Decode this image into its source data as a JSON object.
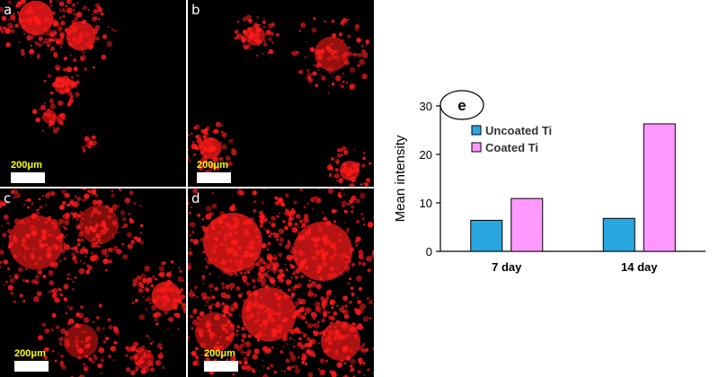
{
  "panels": [
    {
      "letter": "a",
      "scale_label": "200μm"
    },
    {
      "letter": "b",
      "scale_label": "200μm"
    },
    {
      "letter": "c",
      "scale_label": "200μm"
    },
    {
      "letter": "d",
      "scale_label": "200μm"
    }
  ],
  "colors": {
    "fluorescence": "#ff1a1a",
    "uncoated": "#2aa7e0",
    "coated": "#ff99ff"
  },
  "chart_data": {
    "type": "bar",
    "panel_label": "e",
    "categories": [
      "7 day",
      "14 day"
    ],
    "series": [
      {
        "name": "Uncoated Ti",
        "values": [
          6.4,
          6.8
        ]
      },
      {
        "name": "Coated Ti",
        "values": [
          10.9,
          26.3
        ]
      }
    ],
    "xlabel": "",
    "ylabel": "Mean intensity",
    "ylim": [
      0,
      30
    ],
    "yticks": [
      "0",
      "10",
      "20",
      "30"
    ],
    "legend": "top-left"
  }
}
